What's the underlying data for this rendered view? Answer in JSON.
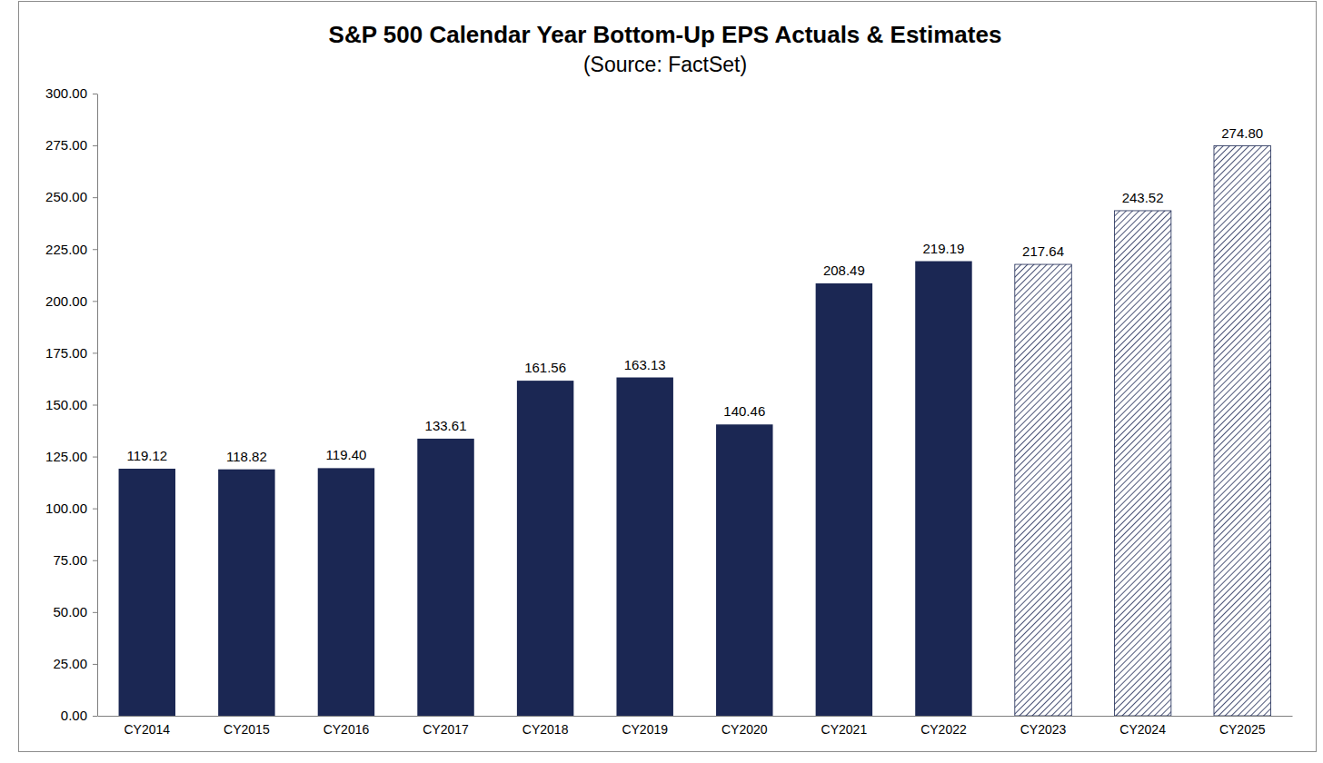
{
  "chart_data": {
    "type": "bar",
    "title": "S&P 500 Calendar Year Bottom-Up EPS Actuals & Estimates",
    "subtitle": "(Source: FactSet)",
    "categories": [
      "CY2014",
      "CY2015",
      "CY2016",
      "CY2017",
      "CY2018",
      "CY2019",
      "CY2020",
      "CY2021",
      "CY2022",
      "CY2023",
      "CY2024",
      "CY2025"
    ],
    "values": [
      119.12,
      118.82,
      119.4,
      133.61,
      161.56,
      163.13,
      140.46,
      208.49,
      219.19,
      217.64,
      243.52,
      274.8
    ],
    "value_labels": [
      "119.12",
      "118.82",
      "119.40",
      "133.61",
      "161.56",
      "163.13",
      "140.46",
      "208.49",
      "219.19",
      "217.64",
      "243.52",
      "274.80"
    ],
    "color": "#1b2753",
    "colors": [
      "#1b2753",
      "#1b2753",
      "#1b2753",
      "#1b2753",
      "#1b2753",
      "#1b2753",
      "#1b2753",
      "#1b2753",
      "#1b2753",
      "#ffffff",
      "#ffffff",
      "#ffffff"
    ],
    "ylim": [
      0,
      300
    ],
    "yticks": [
      {
        "value": 0,
        "label": "0.00"
      },
      {
        "value": 25,
        "label": "25.00"
      },
      {
        "value": 50,
        "label": "50.00"
      },
      {
        "value": 75,
        "label": "75.00"
      },
      {
        "value": 100,
        "label": "100.00"
      },
      {
        "value": 125,
        "label": "125.00"
      },
      {
        "value": 150,
        "label": "150.00"
      },
      {
        "value": 175,
        "label": "175.00"
      },
      {
        "value": 200,
        "label": "200.00"
      },
      {
        "value": 225,
        "label": "225.00"
      },
      {
        "value": 250,
        "label": "250.00"
      },
      {
        "value": 275,
        "label": "275.00"
      },
      {
        "value": 300,
        "label": "300.00"
      }
    ],
    "grid": false,
    "data_labels": true
  }
}
